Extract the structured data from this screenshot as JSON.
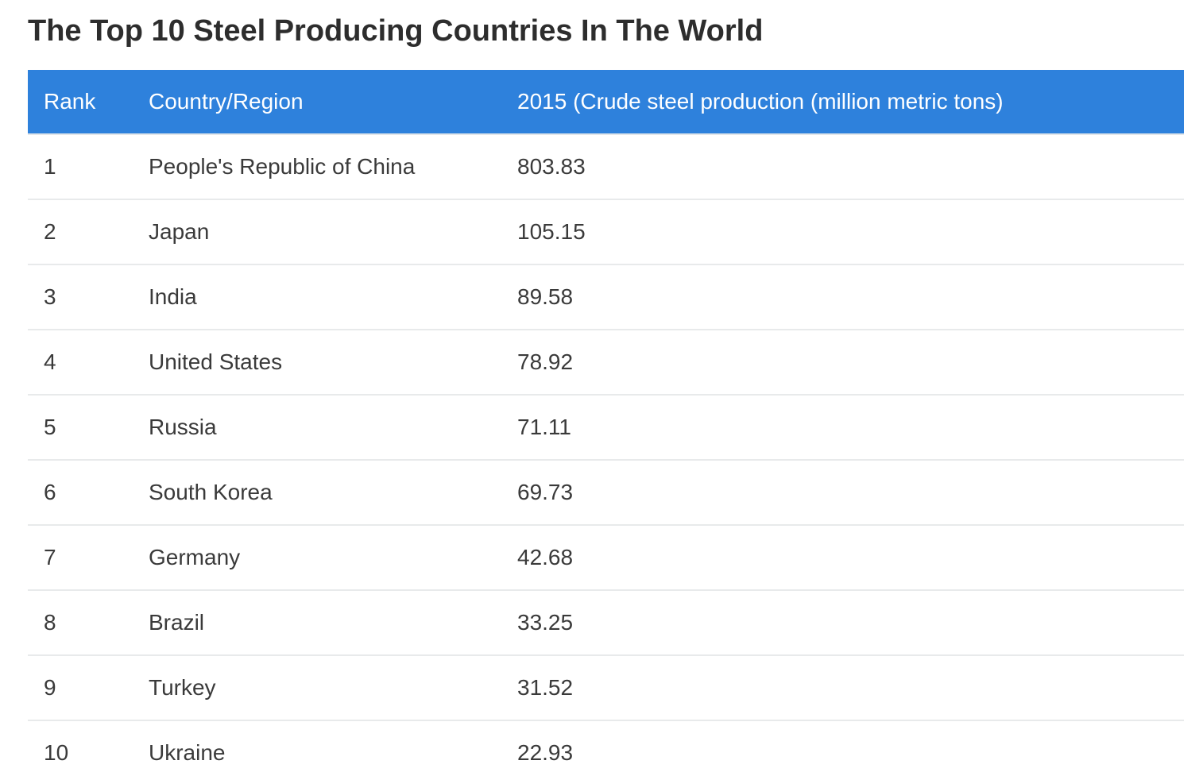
{
  "page": {
    "title": "The Top 10 Steel Producing Countries In The World"
  },
  "colors": {
    "header_background": "#2e81dc",
    "header_text": "#ffffff",
    "title_text": "#2d2d2d",
    "cell_text": "#3a3a3a",
    "row_divider": "#e8eaeb"
  },
  "table": {
    "columns": [
      {
        "label": "Rank"
      },
      {
        "label": "Country/Region"
      },
      {
        "label": "2015 (Crude steel production (million metric tons)"
      }
    ],
    "rows": [
      {
        "rank": "1",
        "country": "People's Republic of China",
        "value": "803.83"
      },
      {
        "rank": "2",
        "country": "Japan",
        "value": "105.15"
      },
      {
        "rank": "3",
        "country": "India",
        "value": "89.58"
      },
      {
        "rank": "4",
        "country": "United States",
        "value": "78.92"
      },
      {
        "rank": "5",
        "country": "Russia",
        "value": "71.11"
      },
      {
        "rank": "6",
        "country": "South Korea",
        "value": "69.73"
      },
      {
        "rank": "7",
        "country": "Germany",
        "value": "42.68"
      },
      {
        "rank": "8",
        "country": "Brazil",
        "value": "33.25"
      },
      {
        "rank": "9",
        "country": "Turkey",
        "value": "31.52"
      },
      {
        "rank": "10",
        "country": "Ukraine",
        "value": "22.93"
      }
    ]
  },
  "chart_data": {
    "type": "table",
    "title": "The Top 10 Steel Producing Countries In The World",
    "columns": [
      "Rank",
      "Country/Region",
      "2015 (Crude steel production (million metric tons)"
    ],
    "categories": [
      "People's Republic of China",
      "Japan",
      "India",
      "United States",
      "Russia",
      "South Korea",
      "Germany",
      "Brazil",
      "Turkey",
      "Ukraine"
    ],
    "values": [
      803.83,
      105.15,
      89.58,
      78.92,
      71.11,
      69.73,
      42.68,
      33.25,
      31.52,
      22.93
    ],
    "ranks": [
      1,
      2,
      3,
      4,
      5,
      6,
      7,
      8,
      9,
      10
    ],
    "value_unit": "million metric tons",
    "year": "2015"
  }
}
